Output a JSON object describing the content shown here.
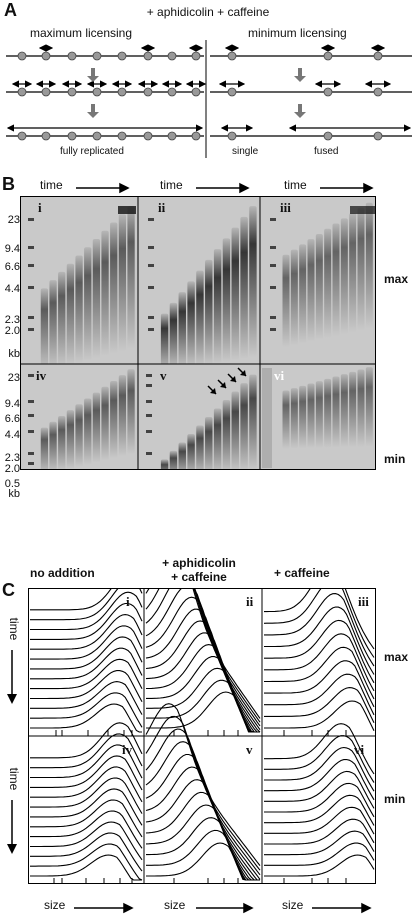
{
  "panelA": {
    "letter": "A",
    "title": "+ aphidicolin + caffeine",
    "left_label": "maximum licensing",
    "right_label": "minimum licensing",
    "left_caption": "fully replicated",
    "right_caption_single": "single",
    "right_caption_fused": "fused"
  },
  "panelB": {
    "letter": "B",
    "time_label": "time",
    "row_labels": [
      "max",
      "min"
    ],
    "subpanels": [
      "i",
      "ii",
      "iii",
      "iv",
      "v",
      "vi"
    ],
    "ladder_top": [
      "23",
      "9.4",
      "6.6",
      "4.4",
      "2.3",
      "2.0",
      "kb"
    ],
    "ladder_bottom": [
      "23",
      "9.4",
      "6.6",
      "4.4",
      "2.3",
      "2.0",
      "0.5",
      "kb"
    ]
  },
  "panelC": {
    "letter": "C",
    "col_titles": [
      "no addition",
      "+ aphidicolin\n+ caffeine",
      "+ caffeine"
    ],
    "row_labels": [
      "max",
      "min"
    ],
    "subpanels": [
      "i",
      "ii",
      "iii",
      "iv",
      "v",
      "vi"
    ],
    "time_label": "time",
    "size_label": "size"
  },
  "colors": {
    "gel_bg": "#c9c9c9",
    "band": "#1a1a1a",
    "line": "#000000",
    "arrow_gray": "#777777"
  }
}
